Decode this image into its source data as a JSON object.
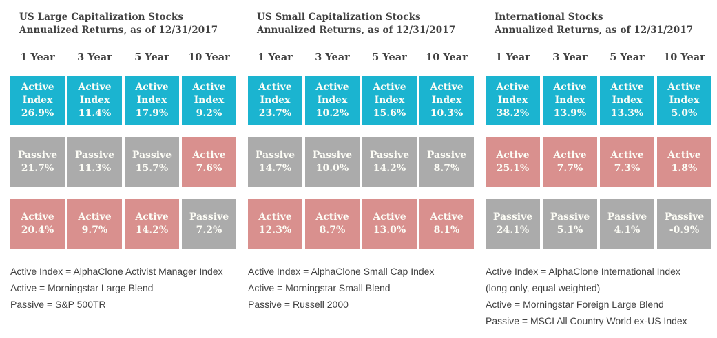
{
  "colors": {
    "active_index_bg": "#1bb4d0",
    "passive_bg": "#ababab",
    "active_bg": "#d9908e",
    "heading_text": "#414141",
    "cell_text": "#fdfdf6"
  },
  "panels": [
    {
      "title": "US Large Capitalization Stocks",
      "subtitle": "Annualized Returns, as of 12/31/2017",
      "columns": [
        "1 Year",
        "3 Year",
        "5 Year",
        "10 Year"
      ],
      "rows": [
        {
          "cells": [
            {
              "label": "Active Index",
              "value": "26.9%",
              "type": "active-index"
            },
            {
              "label": "Active Index",
              "value": "11.4%",
              "type": "active-index"
            },
            {
              "label": "Active Index",
              "value": "17.9%",
              "type": "active-index"
            },
            {
              "label": "Active Index",
              "value": "9.2%",
              "type": "active-index"
            }
          ]
        },
        {
          "cells": [
            {
              "label": "Passive",
              "value": "21.7%",
              "type": "passive"
            },
            {
              "label": "Passive",
              "value": "11.3%",
              "type": "passive"
            },
            {
              "label": "Passive",
              "value": "15.7%",
              "type": "passive"
            },
            {
              "label": "Active",
              "value": "7.6%",
              "type": "active"
            }
          ]
        },
        {
          "cells": [
            {
              "label": "Active",
              "value": "20.4%",
              "type": "active"
            },
            {
              "label": "Active",
              "value": "9.7%",
              "type": "active"
            },
            {
              "label": "Active",
              "value": "14.2%",
              "type": "active"
            },
            {
              "label": "Passive",
              "value": "7.2%",
              "type": "passive"
            }
          ]
        }
      ],
      "footnotes": [
        "Active Index = AlphaClone Activist Manager Index",
        "Active = Morningstar Large Blend",
        "Passive = S&P 500TR"
      ]
    },
    {
      "title": "US Small Capitalization Stocks",
      "subtitle": "Annualized Returns, as of 12/31/2017",
      "columns": [
        "1 Year",
        "3 Year",
        "5 Year",
        "10 Year"
      ],
      "rows": [
        {
          "cells": [
            {
              "label": "Active Index",
              "value": "23.7%",
              "type": "active-index"
            },
            {
              "label": "Active Index",
              "value": "10.2%",
              "type": "active-index"
            },
            {
              "label": "Active Index",
              "value": "15.6%",
              "type": "active-index"
            },
            {
              "label": "Active Index",
              "value": "10.3%",
              "type": "active-index"
            }
          ]
        },
        {
          "cells": [
            {
              "label": "Passive",
              "value": "14.7%",
              "type": "passive"
            },
            {
              "label": "Passive",
              "value": "10.0%",
              "type": "passive"
            },
            {
              "label": "Passive",
              "value": "14.2%",
              "type": "passive"
            },
            {
              "label": "Passive",
              "value": "8.7%",
              "type": "passive"
            }
          ]
        },
        {
          "cells": [
            {
              "label": "Active",
              "value": "12.3%",
              "type": "active"
            },
            {
              "label": "Active",
              "value": "8.7%",
              "type": "active"
            },
            {
              "label": "Active",
              "value": "13.0%",
              "type": "active"
            },
            {
              "label": "Active",
              "value": "8.1%",
              "type": "active"
            }
          ]
        }
      ],
      "footnotes": [
        "Active Index = AlphaClone Small Cap Index",
        "Active = Morningstar Small Blend",
        "Passive = Russell 2000"
      ]
    },
    {
      "title": "International Stocks",
      "subtitle": "Annualized Returns, as of 12/31/2017",
      "columns": [
        "1 Year",
        "3 Year",
        "5 Year",
        "10 Year"
      ],
      "rows": [
        {
          "cells": [
            {
              "label": "Active Index",
              "value": "38.2%",
              "type": "active-index"
            },
            {
              "label": "Active Index",
              "value": "13.9%",
              "type": "active-index"
            },
            {
              "label": "Active Index",
              "value": "13.3%",
              "type": "active-index"
            },
            {
              "label": "Active Index",
              "value": "5.0%",
              "type": "active-index"
            }
          ]
        },
        {
          "cells": [
            {
              "label": "Active",
              "value": "25.1%",
              "type": "active"
            },
            {
              "label": "Active",
              "value": "7.7%",
              "type": "active"
            },
            {
              "label": "Active",
              "value": "7.3%",
              "type": "active"
            },
            {
              "label": "Active",
              "value": "1.8%",
              "type": "active"
            }
          ]
        },
        {
          "cells": [
            {
              "label": "Passive",
              "value": "24.1%",
              "type": "passive"
            },
            {
              "label": "Passive",
              "value": "5.1%",
              "type": "passive"
            },
            {
              "label": "Passive",
              "value": "4.1%",
              "type": "passive"
            },
            {
              "label": "Passive",
              "value": "-0.9%",
              "type": "passive"
            }
          ]
        }
      ],
      "footnotes": [
        "Active Index = AlphaClone International Index",
        "(long only, equal weighted)",
        "Active = Morningstar Foreign Large Blend",
        "Passive = MSCI All Country World ex-US Index"
      ]
    }
  ],
  "chart_data": [
    {
      "type": "table",
      "title": "US Large Capitalization Stocks",
      "subtitle": "Annualized Returns, as of 12/31/2017",
      "categories": [
        "1 Year",
        "3 Year",
        "5 Year",
        "10 Year"
      ],
      "series": [
        {
          "name": "Active Index",
          "values": [
            26.9,
            11.4,
            17.9,
            9.2
          ]
        },
        {
          "name": "Passive",
          "values": [
            21.7,
            11.3,
            15.7,
            7.2
          ]
        },
        {
          "name": "Active",
          "values": [
            20.4,
            9.7,
            14.2,
            7.6
          ]
        }
      ],
      "layout_note": "cells in each column are ranked best to worst top-down",
      "legend": {
        "Active Index": "AlphaClone Activist Manager Index",
        "Active": "Morningstar Large Blend",
        "Passive": "S&P 500TR"
      }
    },
    {
      "type": "table",
      "title": "US Small Capitalization Stocks",
      "subtitle": "Annualized Returns, as of 12/31/2017",
      "categories": [
        "1 Year",
        "3 Year",
        "5 Year",
        "10 Year"
      ],
      "series": [
        {
          "name": "Active Index",
          "values": [
            23.7,
            10.2,
            15.6,
            10.3
          ]
        },
        {
          "name": "Passive",
          "values": [
            14.7,
            10.0,
            14.2,
            8.7
          ]
        },
        {
          "name": "Active",
          "values": [
            12.3,
            8.7,
            13.0,
            8.1
          ]
        }
      ],
      "layout_note": "cells in each column are ranked best to worst top-down",
      "legend": {
        "Active Index": "AlphaClone Small Cap Index",
        "Active": "Morningstar Small Blend",
        "Passive": "Russell 2000"
      }
    },
    {
      "type": "table",
      "title": "International Stocks",
      "subtitle": "Annualized Returns, as of 12/31/2017",
      "categories": [
        "1 Year",
        "3 Year",
        "5 Year",
        "10 Year"
      ],
      "series": [
        {
          "name": "Active Index",
          "values": [
            38.2,
            13.9,
            13.3,
            5.0
          ]
        },
        {
          "name": "Active",
          "values": [
            25.1,
            7.7,
            7.3,
            1.8
          ]
        },
        {
          "name": "Passive",
          "values": [
            24.1,
            5.1,
            4.1,
            -0.9
          ]
        }
      ],
      "layout_note": "cells in each column are ranked best to worst top-down",
      "legend": {
        "Active Index": "AlphaClone International Index (long only, equal weighted)",
        "Active": "Morningstar Foreign Large Blend",
        "Passive": "MSCI All Country World ex-US Index"
      }
    }
  ]
}
